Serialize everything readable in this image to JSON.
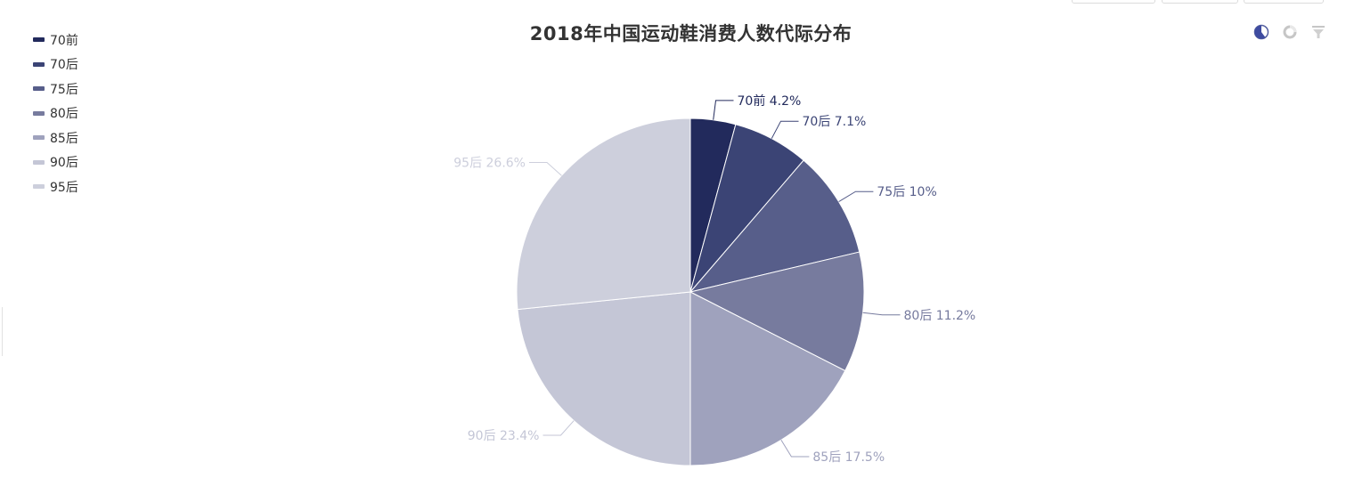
{
  "chart_data": {
    "type": "pie",
    "title": "2018年中国运动鞋消费人数代际分布",
    "slices": [
      {
        "name": "70前",
        "value": 4.2,
        "label": "70前 4.2%",
        "color": "#222a5c"
      },
      {
        "name": "70后",
        "value": 7.1,
        "label": "70后 7.1%",
        "color": "#3b4475"
      },
      {
        "name": "75后",
        "value": 10,
        "label": "75后 10%",
        "color": "#575e8a"
      },
      {
        "name": "80后",
        "value": 11.2,
        "label": "80后 11.2%",
        "color": "#777b9e"
      },
      {
        "name": "85后",
        "value": 17.5,
        "label": "85后 17.5%",
        "color": "#9fa2bd"
      },
      {
        "name": "90后",
        "value": 23.4,
        "label": "90后 23.4%",
        "color": "#c4c6d6"
      },
      {
        "name": "95后",
        "value": 26.6,
        "label": "95后 26.6%",
        "color": "#cdcfdc"
      }
    ],
    "legend_position": "top-left",
    "unit": "%"
  },
  "toolbox": {
    "icons": [
      "pie-mode-icon",
      "ring-mode-icon",
      "filter-icon"
    ]
  }
}
